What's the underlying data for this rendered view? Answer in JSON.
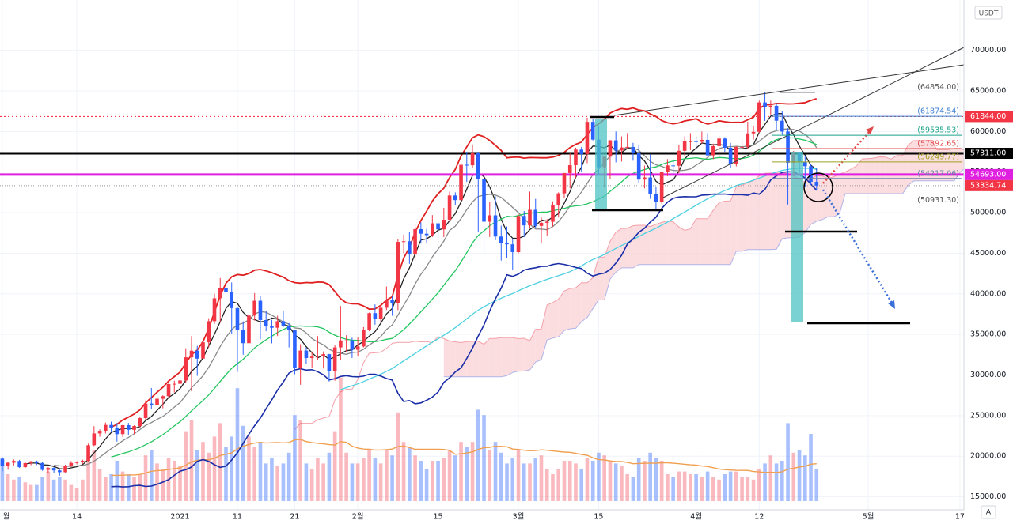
{
  "chart_data": {
    "type": "candlestick",
    "unit": "USDT",
    "x": [
      0,
      1,
      2,
      3,
      4,
      5,
      6,
      7,
      8,
      9,
      10,
      11,
      12,
      13,
      14,
      15,
      16,
      17,
      18,
      19,
      20,
      21,
      22,
      23,
      24,
      25,
      26,
      27,
      28,
      29,
      30,
      31,
      32,
      33,
      34,
      35,
      36,
      37,
      38,
      39,
      40,
      41,
      42,
      43,
      44,
      45,
      46,
      47,
      48,
      49,
      50,
      51,
      52,
      53,
      54,
      55,
      56,
      57,
      58,
      59,
      60,
      61,
      62,
      63,
      64,
      65,
      66,
      67,
      68,
      69,
      70,
      71,
      72,
      73,
      74,
      75,
      76,
      77,
      78,
      79,
      80,
      81,
      82,
      83,
      84,
      85,
      86,
      87,
      88,
      89,
      90,
      91,
      92,
      93,
      94,
      95,
      96,
      97,
      98,
      99,
      100,
      101,
      102,
      103,
      104,
      105,
      106,
      107,
      108,
      109,
      110,
      111,
      112,
      113,
      114,
      115,
      116,
      117,
      118,
      119,
      120,
      121,
      122,
      123,
      124,
      125,
      126,
      127,
      128,
      129,
      130,
      131,
      132,
      133,
      134,
      135,
      136,
      137,
      138,
      139,
      140,
      141,
      142
    ],
    "open": [
      19700,
      18760,
      19200,
      19420,
      18650,
      19150,
      19360,
      19170,
      18320,
      18550,
      18250,
      18030,
      18800,
      19170,
      19270,
      19440,
      21350,
      22800,
      23130,
      23850,
      23470,
      22720,
      23820,
      23250,
      23720,
      24690,
      26490,
      26280,
      27080,
      27390,
      28880,
      28920,
      29330,
      32180,
      33000,
      32020,
      34030,
      36630,
      39450,
      40670,
      40240,
      38240,
      35550,
      33920,
      37330,
      39150,
      36770,
      36010,
      35820,
      36630,
      36020,
      35550,
      30830,
      33010,
      32090,
      32270,
      32370,
      32570,
      30440,
      33400,
      34260,
      34260,
      33110,
      33520,
      35510,
      37620,
      36940,
      38290,
      39260,
      38880,
      46400,
      46480,
      44840,
      47970,
      47410,
      47230,
      48690,
      47940,
      49130,
      52120,
      51550,
      55900,
      55840,
      57410,
      54100,
      48890,
      49670,
      47060,
      46280,
      46100,
      45140,
      49590,
      48440,
      50350,
      48370,
      48750,
      48880,
      50970,
      52380,
      54880,
      55850,
      57770,
      57220,
      61190,
      59000,
      55600,
      56900,
      58910,
      57650,
      58030,
      58100,
      57350,
      54080,
      54340,
      52300,
      51290,
      55030,
      55820,
      55780,
      57620,
      58780,
      58800,
      58730,
      58970,
      57060,
      58200,
      59130,
      57990,
      56000,
      58090,
      58100,
      59770,
      59960,
      63580,
      62960,
      63160,
      61330,
      60000,
      56150,
      57370,
      56210,
      55720,
      53800
    ],
    "high": [
      19900,
      19300,
      19600,
      19550,
      19300,
      19420,
      19450,
      19300,
      18650,
      18650,
      18350,
      18950,
      19400,
      19380,
      19570,
      21550,
      23700,
      23300,
      24150,
      24250,
      24100,
      23850,
      24100,
      23800,
      24790,
      26870,
      28400,
      27480,
      27500,
      28990,
      29300,
      29600,
      33300,
      34800,
      33600,
      34500,
      37000,
      40000,
      41950,
      41350,
      41400,
      38400,
      36600,
      37850,
      40100,
      39700,
      37900,
      36800,
      37300,
      37850,
      36400,
      35600,
      33800,
      33400,
      32900,
      34800,
      32900,
      32600,
      33700,
      38500,
      34900,
      34600,
      34700,
      35900,
      37700,
      38700,
      38300,
      40900,
      39700,
      46800,
      47300,
      47600,
      48600,
      48800,
      48000,
      49700,
      49000,
      50600,
      52600,
      52500,
      56300,
      57500,
      58400,
      57500,
      54200,
      51300,
      52000,
      48400,
      48300,
      46700,
      49800,
      50200,
      52600,
      51700,
      49400,
      49200,
      51400,
      52500,
      54900,
      57300,
      58000,
      58100,
      61700,
      61600,
      60600,
      56900,
      58950,
      60000,
      59400,
      59800,
      58600,
      58400,
      55800,
      57200,
      53200,
      55100,
      56600,
      56600,
      58400,
      59400,
      59800,
      59400,
      60000,
      59800,
      58500,
      59500,
      59300,
      58600,
      58200,
      58900,
      61200,
      60700,
      63800,
      64854,
      63800,
      63500,
      62500,
      60400,
      57600,
      57500,
      57000,
      56000,
      55500
    ],
    "low": [
      18150,
      18330,
      18870,
      18550,
      18550,
      18900,
      18920,
      18200,
      17950,
      17950,
      17600,
      17900,
      18700,
      19000,
      19050,
      19300,
      21250,
      22400,
      22800,
      23050,
      21800,
      22350,
      22600,
      22700,
      23450,
      24500,
      25800,
      26100,
      25900,
      27320,
      27870,
      28620,
      29000,
      28000,
      29900,
      31900,
      33400,
      36300,
      36500,
      38700,
      35100,
      30400,
      32500,
      32400,
      36700,
      34400,
      35400,
      33900,
      34800,
      35900,
      33400,
      30100,
      28800,
      31400,
      30900,
      31900,
      30800,
      29200,
      29300,
      31900,
      32900,
      32100,
      32300,
      33400,
      35400,
      36200,
      36600,
      38000,
      37300,
      38000,
      45000,
      43700,
      44100,
      46200,
      46200,
      47000,
      46200,
      47000,
      48900,
      50900,
      50700,
      53800,
      55500,
      47600,
      44900,
      47000,
      46600,
      44100,
      44400,
      43000,
      45000,
      47000,
      48100,
      48100,
      46300,
      47200,
      48300,
      49400,
      51800,
      53000,
      54300,
      55000,
      56100,
      58900,
      54600,
      53100,
      54100,
      56200,
      56300,
      57800,
      56400,
      53700,
      53000,
      51700,
      50300,
      51100,
      54500,
      54600,
      54900,
      56900,
      57700,
      57900,
      58500,
      57000,
      56600,
      56800,
      57500,
      55500,
      55700,
      57700,
      57900,
      59000,
      59800,
      61300,
      62000,
      60200,
      59600,
      51000,
      54500,
      54900,
      53200,
      53400,
      52800
    ],
    "close": [
      18760,
      19200,
      19420,
      18650,
      19150,
      19360,
      19170,
      18320,
      18550,
      18250,
      18030,
      18800,
      19170,
      19270,
      19440,
      21350,
      22800,
      23130,
      23850,
      23470,
      22720,
      23820,
      23250,
      23720,
      24690,
      26490,
      26280,
      27080,
      27390,
      28880,
      28920,
      29330,
      32180,
      33000,
      32020,
      34030,
      36630,
      39450,
      40670,
      40240,
      38240,
      35550,
      33920,
      37330,
      39150,
      36770,
      36010,
      35820,
      36630,
      36020,
      35550,
      30830,
      33010,
      32090,
      32270,
      32370,
      32570,
      30440,
      33400,
      34260,
      34260,
      33110,
      33520,
      35510,
      37620,
      36940,
      38290,
      39260,
      38880,
      46400,
      46480,
      44840,
      47970,
      47410,
      47230,
      48690,
      47940,
      49130,
      52120,
      51550,
      55900,
      55840,
      57410,
      54100,
      48890,
      49670,
      47060,
      46280,
      46100,
      45140,
      49590,
      48440,
      50350,
      48370,
      48750,
      48880,
      50970,
      52380,
      54880,
      55850,
      57770,
      57220,
      61190,
      59000,
      55600,
      56900,
      58910,
      57650,
      58030,
      58100,
      57350,
      54080,
      54340,
      52300,
      51290,
      55030,
      55820,
      55780,
      57620,
      58780,
      58800,
      58730,
      58970,
      57060,
      58200,
      59130,
      57990,
      56000,
      58090,
      58100,
      59770,
      59960,
      63580,
      62960,
      63160,
      61330,
      60000,
      56150,
      57370,
      56210,
      55720,
      53800,
      53334.74
    ],
    "volume": [
      75,
      50,
      40,
      45,
      35,
      30,
      30,
      45,
      55,
      40,
      45,
      40,
      30,
      25,
      40,
      85,
      95,
      60,
      45,
      50,
      75,
      55,
      50,
      45,
      50,
      85,
      95,
      70,
      60,
      80,
      75,
      65,
      130,
      150,
      95,
      110,
      90,
      120,
      145,
      100,
      120,
      210,
      140,
      120,
      100,
      110,
      70,
      80,
      65,
      70,
      90,
      160,
      150,
      70,
      60,
      80,
      70,
      90,
      130,
      230,
      90,
      70,
      70,
      80,
      95,
      80,
      70,
      95,
      85,
      165,
      110,
      100,
      85,
      75,
      60,
      75,
      75,
      80,
      95,
      85,
      110,
      100,
      110,
      170,
      160,
      95,
      110,
      90,
      70,
      80,
      95,
      70,
      70,
      80,
      85,
      60,
      50,
      60,
      75,
      75,
      70,
      60,
      80,
      75,
      90,
      85,
      75,
      70,
      65,
      50,
      45,
      80,
      75,
      90,
      80,
      75,
      50,
      45,
      55,
      55,
      50,
      50,
      45,
      55,
      45,
      40,
      50,
      55,
      55,
      45,
      45,
      40,
      60,
      70,
      85,
      70,
      75,
      145,
      90,
      95,
      85,
      125,
      60
    ],
    "vlim": [
      0,
      250
    ],
    "xlim": [
      -0.4,
      167.7
    ],
    "xticks": [
      {
        "value": 0,
        "label": "월"
      },
      {
        "value": 13,
        "label": "14"
      },
      {
        "value": 31,
        "label": "2021"
      },
      {
        "value": 41,
        "label": "11"
      },
      {
        "value": 51,
        "label": "21"
      },
      {
        "value": 62,
        "label": "2월"
      },
      {
        "value": 76,
        "label": "15"
      },
      {
        "value": 90,
        "label": "3월"
      },
      {
        "value": 104,
        "label": "15"
      },
      {
        "value": 121,
        "label": "4월"
      },
      {
        "value": 132,
        "label": "12"
      },
      {
        "value": 151,
        "label": "5월"
      },
      {
        "value": 167,
        "label": "17"
      }
    ],
    "ylim": [
      13400,
      76200
    ],
    "yticks": [
      {
        "value": 15000,
        "label": "15000.00"
      },
      {
        "value": 20000,
        "label": "20000.00"
      },
      {
        "value": 25000,
        "label": "25000.00"
      },
      {
        "value": 30000,
        "label": "30000.00"
      },
      {
        "value": 35000,
        "label": "35000.00"
      },
      {
        "value": 40000,
        "label": "40000.00"
      },
      {
        "value": 45000,
        "label": "45000.00"
      },
      {
        "value": 50000,
        "label": "50000.00"
      },
      {
        "value": 55000,
        "label": "55000.00"
      },
      {
        "value": 60000,
        "label": "60000.00"
      },
      {
        "value": 65000,
        "label": "65000.00"
      },
      {
        "value": 70000,
        "label": "70000.00"
      }
    ],
    "grid": true,
    "up_color": "#f23645",
    "down_color": "#2962ff",
    "ma_colors": [
      "#222222",
      "#888888",
      "#22c55e",
      "#4dd0e1"
    ],
    "bb_colors": [
      "#e02020",
      "#7b3fb3",
      "#1a2ea8"
    ],
    "cloud_colors": [
      "#f4a0a8",
      "#b0b4e8",
      "#f9cfd3"
    ],
    "volume_ma_color": "#f0a050",
    "price_lines": [
      {
        "value": 61844,
        "label": "61844.00",
        "color": "#f23645",
        "width": 1.2,
        "dash": "2 3"
      },
      {
        "value": 57311,
        "label": "57311.00",
        "color": "#000000",
        "width": 3,
        "dash": ""
      },
      {
        "value": 54693,
        "label": "54693.00",
        "color": "#e020e0",
        "width": 3,
        "dash": ""
      }
    ],
    "last_color": "#f23645",
    "fib_levels": [
      {
        "value": 64854,
        "label": "(64854.00)",
        "color": "#555555"
      },
      {
        "value": 61874.54,
        "label": "(61874.54)",
        "color": "#3f7fd0"
      },
      {
        "value": 59535.53,
        "label": "(59535.53)",
        "color": "#1aa38a"
      },
      {
        "value": 57892.65,
        "label": "(57892.65)",
        "color": "#e04848"
      },
      {
        "value": 56249.77,
        "label": "(56249.77)",
        "color": "#9aa020"
      },
      {
        "value": 54217.06,
        "label": "(54217.06)",
        "color": "#6a7fa8"
      },
      {
        "value": 50931.3,
        "label": "(50931.30)",
        "color": "#555555"
      }
    ]
  }
}
